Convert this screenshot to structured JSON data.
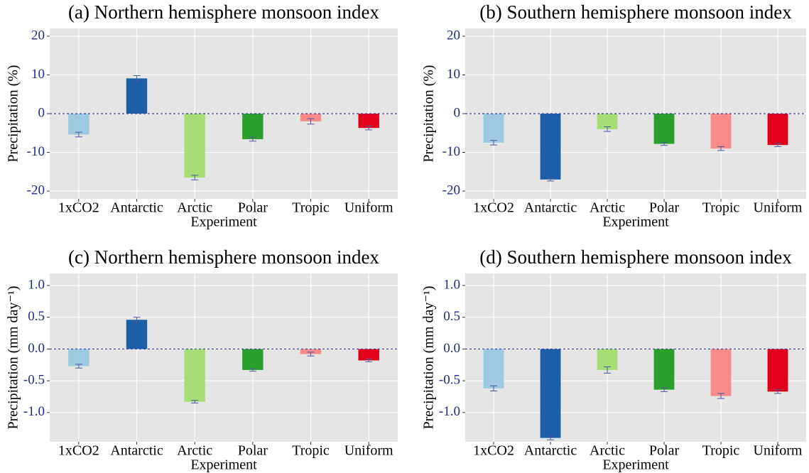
{
  "chart_data": [
    {
      "type": "bar",
      "title": "(a) Northern hemisphere monsoon index",
      "xlabel": "Experiment",
      "ylabel": "Precipitation (%)",
      "categories": [
        "1xCO2",
        "Antarctic",
        "Arctic",
        "Polar",
        "Tropic",
        "Uniform"
      ],
      "values": [
        -5.4,
        9.1,
        -16.5,
        -6.6,
        -2.0,
        -3.7
      ],
      "errors": [
        0.6,
        0.7,
        0.6,
        0.5,
        0.7,
        0.5
      ],
      "colors": [
        "#9ecae1",
        "#1a5fa8",
        "#a6dd74",
        "#2ca02c",
        "#f98b8b",
        "#e0001b"
      ],
      "ylim": [
        -22,
        22
      ],
      "yticks": [
        -20,
        -10,
        0,
        10,
        20
      ],
      "grid": true,
      "zero_line": true
    },
    {
      "type": "bar",
      "title": "(b) Southern hemisphere monsoon index",
      "xlabel": "Experiment",
      "ylabel": "Precipitation (%)",
      "categories": [
        "1xCO2",
        "Antarctic",
        "Arctic",
        "Polar",
        "Tropic",
        "Uniform"
      ],
      "values": [
        -7.5,
        -17.0,
        -4.0,
        -7.8,
        -9.0,
        -8.1
      ],
      "errors": [
        0.6,
        0.4,
        0.6,
        0.4,
        0.5,
        0.4
      ],
      "colors": [
        "#9ecae1",
        "#1a5fa8",
        "#a6dd74",
        "#2ca02c",
        "#f98b8b",
        "#e0001b"
      ],
      "ylim": [
        -22,
        22
      ],
      "yticks": [
        -20,
        -10,
        0,
        10,
        20
      ],
      "grid": true,
      "zero_line": true
    },
    {
      "type": "bar",
      "title": "(c) Northern hemisphere monsoon index",
      "xlabel": "Experiment",
      "ylabel": "Precipitation (mm day⁻¹)",
      "categories": [
        "1xCO2",
        "Antarctic",
        "Arctic",
        "Polar",
        "Tropic",
        "Uniform"
      ],
      "values": [
        -0.27,
        0.46,
        -0.83,
        -0.33,
        -0.08,
        -0.18
      ],
      "errors": [
        0.03,
        0.04,
        0.02,
        0.02,
        0.03,
        0.02
      ],
      "colors": [
        "#9ecae1",
        "#1a5fa8",
        "#a6dd74",
        "#2ca02c",
        "#f98b8b",
        "#e0001b"
      ],
      "ylim": [
        -1.46,
        1.19
      ],
      "yticks": [
        {
          "value": -1,
          "label": "-1.0"
        },
        -0.5,
        {
          "value": 0,
          "label": "0.0"
        },
        0.5,
        {
          "value": 1,
          "label": "1.0"
        }
      ],
      "grid": true,
      "zero_line": true
    },
    {
      "type": "bar",
      "title": "(d) Southern hemisphere monsoon index",
      "xlabel": "Experiment",
      "ylabel": "Precipitation (mm day⁻¹)",
      "categories": [
        "1xCO2",
        "Antarctic",
        "Arctic",
        "Polar",
        "Tropic",
        "Uniform"
      ],
      "values": [
        -0.62,
        -1.4,
        -0.33,
        -0.64,
        -0.74,
        -0.67
      ],
      "errors": [
        0.04,
        0.03,
        0.05,
        0.03,
        0.04,
        0.03
      ],
      "colors": [
        "#9ecae1",
        "#1a5fa8",
        "#a6dd74",
        "#2ca02c",
        "#f98b8b",
        "#e0001b"
      ],
      "ylim": [
        -1.46,
        1.19
      ],
      "yticks": [
        {
          "value": -1,
          "label": "-1.0"
        },
        -0.5,
        {
          "value": 0,
          "label": "0.0"
        },
        0.5,
        {
          "value": 1,
          "label": "1.0"
        }
      ],
      "grid": true,
      "zero_line": true
    }
  ]
}
